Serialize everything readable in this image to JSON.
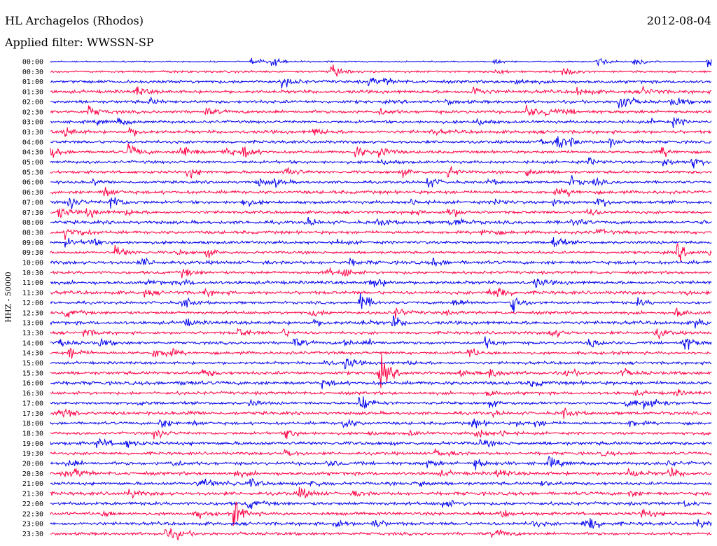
{
  "header": {
    "station": "HL Archagelos (Rhodos)",
    "date": "2012-08-04",
    "filter": "Applied filter: WWSSN-SP",
    "channel": "HHZ - 50000"
  },
  "colors": {
    "trace_a": "#0000ee",
    "trace_b": "#ff0044",
    "background": "#ffffff"
  },
  "chart_data": {
    "type": "line",
    "description_kind": "helicorder",
    "title": "HL Archagelos (Rhodos)",
    "ylabel": "HHZ - 50000",
    "xlabel": "",
    "rows": [
      "00:00",
      "00:30",
      "01:00",
      "01:30",
      "02:00",
      "02:30",
      "03:00",
      "03:30",
      "04:00",
      "04:30",
      "05:00",
      "05:30",
      "06:00",
      "06:30",
      "07:00",
      "07:30",
      "08:00",
      "08:30",
      "09:00",
      "09:30",
      "10:00",
      "10:30",
      "11:00",
      "11:30",
      "12:00",
      "12:30",
      "13:00",
      "13:30",
      "14:00",
      "14:30",
      "15:00",
      "15:30",
      "16:00",
      "16:30",
      "17:00",
      "17:30",
      "18:00",
      "18:30",
      "19:00",
      "19:30",
      "20:00",
      "20:30",
      "21:00",
      "21:30",
      "22:00",
      "22:30",
      "23:00",
      "23:30"
    ],
    "row_colors": [
      "blue",
      "red"
    ],
    "row_duration_minutes": 30,
    "events": [
      {
        "row": "02:00",
        "x_fraction": 0.86,
        "amplitude": 1.0
      },
      {
        "row": "02:30",
        "x_fraction": 0.06,
        "amplitude": 0.5
      },
      {
        "row": "04:30",
        "x_fraction": 0.12,
        "amplitude": 0.7
      },
      {
        "row": "04:30",
        "x_fraction": 0.2,
        "amplitude": 0.9
      },
      {
        "row": "04:30",
        "x_fraction": 0.5,
        "amplitude": 0.6
      },
      {
        "row": "07:00",
        "x_fraction": 0.03,
        "amplitude": 0.6
      },
      {
        "row": "09:30",
        "x_fraction": 0.1,
        "amplitude": 0.6
      },
      {
        "row": "09:30",
        "x_fraction": 0.95,
        "amplitude": 0.7
      },
      {
        "row": "14:00",
        "x_fraction": 0.96,
        "amplitude": 0.7
      },
      {
        "row": "14:30",
        "x_fraction": 0.03,
        "amplitude": 0.6
      },
      {
        "row": "15:30",
        "x_fraction": 0.5,
        "amplitude": 0.7
      },
      {
        "row": "17:00",
        "x_fraction": 0.47,
        "amplitude": 0.9
      },
      {
        "row": "21:30",
        "x_fraction": 0.38,
        "amplitude": 0.6
      },
      {
        "row": "22:30",
        "x_fraction": 0.28,
        "amplitude": 1.0
      },
      {
        "row": "12:00",
        "x_fraction": 0.47,
        "amplitude": 0.8
      },
      {
        "row": "12:00",
        "x_fraction": 0.7,
        "amplitude": 0.8
      }
    ]
  }
}
